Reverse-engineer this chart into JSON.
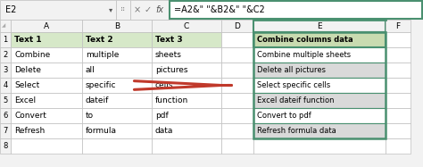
{
  "formula_bar_text": "=A2&\" \"&B2&\" \"&C2",
  "cell_ref": "E2",
  "col_headers": [
    "A",
    "B",
    "C",
    "D",
    "E",
    "F"
  ],
  "left_headers": [
    "Text 1",
    "Text 2",
    "Text 3"
  ],
  "left_data": [
    [
      "Combine",
      "multiple",
      "sheets"
    ],
    [
      "Delete",
      "all",
      "pictures"
    ],
    [
      "Select",
      "specific",
      "cells"
    ],
    [
      "Excel",
      "dateif",
      "function"
    ],
    [
      "Convert",
      "to",
      "pdf"
    ],
    [
      "Refresh",
      "formula",
      "data"
    ]
  ],
  "right_header": "Combine columns data",
  "right_data": [
    "Combine multiple sheets",
    "Delete all pictures",
    "Select specific cells",
    "Excel dateif function",
    "Convert to pdf",
    "Refresh formula data"
  ],
  "header_bg": "#d6e8c8",
  "right_header_bg": "#c9dbb0",
  "right_row_bg_odd": "#ffffff",
  "right_row_bg_even": "#d9d9d9",
  "left_bg": "#ffffff",
  "grid_color": "#bfbfbf",
  "formula_bar_bg": "#ffffff",
  "formula_bar_border": "#4a9070",
  "top_bar_bg": "#f2f2f2",
  "arrow_color": "#c0392b",
  "text_color": "#000000",
  "row_num_bg": "#f2f2f2",
  "col_hdr_bg": "#f2f2f2"
}
